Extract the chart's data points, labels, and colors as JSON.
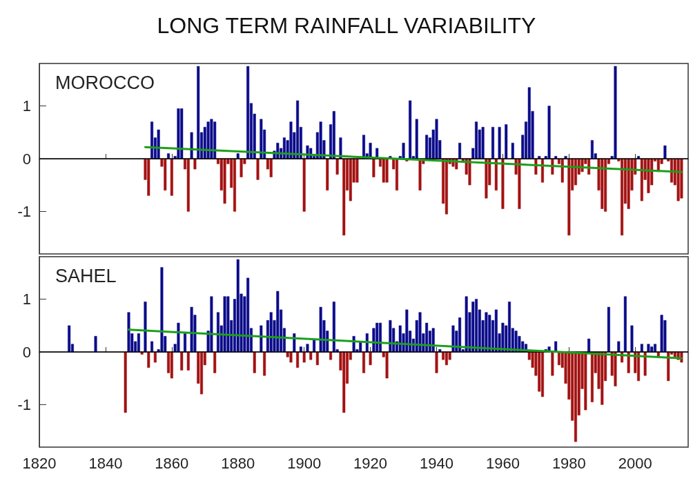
{
  "chart_data": [
    {
      "type": "bar",
      "title": "LONG TERM RAINFALL VARIABILITY",
      "annotations": [
        "MOROCCO"
      ],
      "tick_labels": "y",
      "xlim": [
        1820,
        2016
      ],
      "xticks": [
        1820,
        1840,
        1860,
        1880,
        1900,
        1920,
        1940,
        1960,
        1980,
        2000
      ],
      "ylim": [
        -1.8,
        1.8
      ],
      "yticks": [
        -1,
        0,
        1
      ],
      "ref_lines": [
        {
          "axis": "y",
          "value": 0,
          "color": "#000000"
        }
      ],
      "x": [
        1852,
        1853,
        1854,
        1855,
        1856,
        1857,
        1858,
        1859,
        1860,
        1861,
        1862,
        1863,
        1864,
        1865,
        1866,
        1867,
        1868,
        1869,
        1870,
        1871,
        1872,
        1873,
        1874,
        1875,
        1876,
        1877,
        1878,
        1879,
        1880,
        1881,
        1882,
        1883,
        1884,
        1885,
        1886,
        1887,
        1888,
        1889,
        1890,
        1891,
        1892,
        1893,
        1894,
        1895,
        1896,
        1897,
        1898,
        1899,
        1900,
        1901,
        1902,
        1903,
        1904,
        1905,
        1906,
        1907,
        1908,
        1909,
        1910,
        1911,
        1912,
        1913,
        1914,
        1915,
        1916,
        1917,
        1918,
        1919,
        1920,
        1921,
        1922,
        1923,
        1924,
        1925,
        1926,
        1927,
        1928,
        1929,
        1930,
        1931,
        1932,
        1933,
        1934,
        1935,
        1936,
        1937,
        1938,
        1939,
        1940,
        1941,
        1942,
        1943,
        1944,
        1945,
        1946,
        1947,
        1948,
        1949,
        1950,
        1951,
        1952,
        1953,
        1954,
        1955,
        1956,
        1957,
        1958,
        1959,
        1960,
        1961,
        1962,
        1963,
        1964,
        1965,
        1966,
        1967,
        1968,
        1969,
        1970,
        1971,
        1972,
        1973,
        1974,
        1975,
        1976,
        1977,
        1978,
        1979,
        1980,
        1981,
        1982,
        1983,
        1984,
        1985,
        1986,
        1987,
        1988,
        1989,
        1990,
        1991,
        1992,
        1993,
        1994,
        1995,
        1996,
        1997,
        1998,
        1999,
        2000,
        2001,
        2002,
        2003,
        2004,
        2005,
        2006,
        2007,
        2008,
        2009,
        2010,
        2011,
        2012,
        2013,
        2014
      ],
      "series": [
        {
          "color": "#0b0b8a",
          "values": [
            null,
            null,
            0.7,
            0.4,
            0.55,
            null,
            null,
            0.1,
            null,
            0.05,
            0.95,
            0.95,
            null,
            null,
            0.5,
            null,
            1.75,
            0.5,
            0.6,
            0.7,
            0.75,
            0.7,
            null,
            null,
            null,
            null,
            null,
            null,
            0.1,
            null,
            null,
            1.75,
            1.05,
            0.85,
            null,
            0.75,
            0.55,
            null,
            null,
            0.15,
            0.3,
            0.2,
            0.4,
            0.35,
            0.7,
            0.5,
            1.1,
            0.6,
            null,
            0.25,
            0.2,
            0.05,
            0.5,
            0.7,
            0.35,
            null,
            0.65,
            0.9,
            null,
            0.4,
            null,
            null,
            null,
            null,
            null,
            null,
            0.45,
            0.1,
            0.3,
            null,
            0.2,
            null,
            null,
            null,
            0.05,
            null,
            null,
            0.05,
            0.3,
            null,
            1.1,
            0.05,
            0.75,
            null,
            null,
            0.45,
            0.4,
            0.55,
            0.75,
            0.35,
            null,
            null,
            null,
            null,
            null,
            0.3,
            null,
            null,
            null,
            0.2,
            0.7,
            0.55,
            0.6,
            null,
            null,
            0.6,
            null,
            0.6,
            null,
            0.65,
            null,
            0.3,
            null,
            null,
            0.45,
            0.7,
            1.35,
            0.9,
            null,
            0.05,
            null,
            0.05,
            1.0,
            null,
            0.05,
            null,
            null,
            0.05,
            null,
            null,
            null,
            null,
            null,
            null,
            null,
            0.35,
            0.1,
            null,
            null,
            null,
            null,
            0.05,
            1.75,
            null,
            null,
            null,
            null,
            null,
            null,
            0.05,
            null,
            null,
            null,
            null,
            null,
            null,
            null,
            0.25,
            null,
            null,
            null,
            null,
            null
          ]
        },
        {
          "color": "#a31212",
          "values": [
            -0.4,
            -0.7,
            null,
            null,
            null,
            -0.15,
            -0.6,
            null,
            -0.7,
            null,
            null,
            null,
            -0.2,
            -1.0,
            null,
            -0.2,
            null,
            null,
            null,
            null,
            null,
            null,
            -0.1,
            -0.6,
            -0.85,
            -0.1,
            -0.55,
            -1.0,
            null,
            -0.35,
            -0.1,
            null,
            null,
            null,
            -0.4,
            null,
            null,
            -0.2,
            -0.35,
            null,
            null,
            null,
            null,
            null,
            null,
            null,
            null,
            null,
            -1.0,
            null,
            null,
            null,
            null,
            null,
            null,
            -0.6,
            null,
            null,
            -0.3,
            null,
            -1.45,
            -0.6,
            -0.8,
            -0.45,
            -0.45,
            null,
            null,
            null,
            null,
            -0.35,
            null,
            -0.15,
            -0.45,
            -0.45,
            null,
            -0.2,
            -0.6,
            null,
            null,
            -0.05,
            null,
            null,
            null,
            -0.6,
            -0.1,
            null,
            null,
            null,
            null,
            null,
            -0.85,
            -1.05,
            -0.1,
            -0.15,
            -0.2,
            null,
            -0.05,
            -0.3,
            -0.5,
            null,
            null,
            null,
            null,
            -0.75,
            -0.5,
            null,
            -0.6,
            null,
            -0.95,
            null,
            null,
            null,
            -0.3,
            -0.95,
            null,
            null,
            null,
            null,
            -0.3,
            null,
            -0.45,
            null,
            null,
            -0.3,
            null,
            -0.1,
            -0.45,
            null,
            -1.45,
            -0.6,
            -0.5,
            -0.3,
            -0.25,
            -0.1,
            -0.3,
            null,
            null,
            -0.6,
            -0.95,
            -1.0,
            -0.1,
            null,
            null,
            -0.05,
            -1.45,
            -0.85,
            -0.95,
            -0.6,
            -0.3,
            null,
            -0.8,
            -0.4,
            -0.65,
            -0.5,
            -0.05,
            -0.25,
            -0.1,
            null,
            -0.05,
            -0.45,
            -0.5,
            -0.8,
            -0.75
          ]
        },
        {
          "type": "line",
          "color": "#1aa01a",
          "x": [
            1852,
            2014
          ],
          "values": [
            0.22,
            -0.25
          ]
        }
      ]
    },
    {
      "type": "bar",
      "annotations": [
        "SAHEL"
      ],
      "xlim": [
        1820,
        2016
      ],
      "xticks": [
        1820,
        1840,
        1860,
        1880,
        1900,
        1920,
        1940,
        1960,
        1980,
        2000
      ],
      "ylim": [
        -1.8,
        1.8
      ],
      "yticks": [
        -1,
        0,
        1
      ],
      "ref_lines": [
        {
          "axis": "y",
          "value": 0,
          "color": "#000000"
        }
      ],
      "x": [
        1829,
        1830,
        1837,
        1846,
        1847,
        1848,
        1849,
        1850,
        1851,
        1852,
        1853,
        1854,
        1855,
        1856,
        1857,
        1858,
        1859,
        1860,
        1861,
        1862,
        1863,
        1864,
        1865,
        1866,
        1867,
        1868,
        1869,
        1870,
        1871,
        1872,
        1873,
        1874,
        1875,
        1876,
        1877,
        1878,
        1879,
        1880,
        1881,
        1882,
        1883,
        1884,
        1885,
        1886,
        1887,
        1888,
        1889,
        1890,
        1891,
        1892,
        1893,
        1894,
        1895,
        1896,
        1897,
        1898,
        1899,
        1900,
        1901,
        1902,
        1903,
        1904,
        1905,
        1906,
        1907,
        1908,
        1909,
        1910,
        1911,
        1912,
        1913,
        1914,
        1915,
        1916,
        1917,
        1918,
        1919,
        1920,
        1921,
        1922,
        1923,
        1924,
        1925,
        1926,
        1927,
        1928,
        1929,
        1930,
        1931,
        1932,
        1933,
        1934,
        1935,
        1936,
        1937,
        1938,
        1939,
        1940,
        1941,
        1942,
        1943,
        1944,
        1945,
        1946,
        1947,
        1948,
        1949,
        1950,
        1951,
        1952,
        1953,
        1954,
        1955,
        1956,
        1957,
        1958,
        1959,
        1960,
        1961,
        1962,
        1963,
        1964,
        1965,
        1966,
        1967,
        1968,
        1969,
        1970,
        1971,
        1972,
        1973,
        1974,
        1975,
        1976,
        1977,
        1978,
        1979,
        1980,
        1981,
        1982,
        1983,
        1984,
        1985,
        1986,
        1987,
        1988,
        1989,
        1990,
        1991,
        1992,
        1993,
        1994,
        1995,
        1996,
        1997,
        1998,
        1999,
        2000,
        2001,
        2002,
        2003,
        2004,
        2005,
        2006,
        2007,
        2008,
        2009,
        2010,
        2011,
        2012,
        2013,
        2014
      ],
      "series": [
        {
          "color": "#0b0b8a",
          "values": [
            0.5,
            0.15,
            0.3,
            null,
            0.75,
            0.35,
            0.2,
            0.35,
            null,
            0.95,
            null,
            0.2,
            null,
            0.05,
            1.6,
            0.3,
            null,
            null,
            0.15,
            0.55,
            null,
            0.35,
            null,
            0.85,
            0.7,
            null,
            null,
            null,
            0.4,
            1.05,
            null,
            0.75,
            0.5,
            1.05,
            1.05,
            0.6,
            1.0,
            1.75,
            1.1,
            1.05,
            1.4,
            0.45,
            null,
            null,
            0.5,
            null,
            0.6,
            0.75,
            0.6,
            1.15,
            0.8,
            0.45,
            null,
            null,
            0.35,
            null,
            0.1,
            null,
            0.15,
            null,
            0.25,
            null,
            0.85,
            0.6,
            0.4,
            null,
            0.95,
            0.05,
            null,
            null,
            null,
            null,
            0.3,
            0.05,
            0.2,
            null,
            0.35,
            null,
            0.45,
            0.55,
            0.55,
            null,
            null,
            0.6,
            0.45,
            0.2,
            0.5,
            0.35,
            0.8,
            0.4,
            0.25,
            0.6,
            0.75,
            0.35,
            0.55,
            0.4,
            0.45,
            null,
            0.05,
            null,
            null,
            null,
            0.5,
            0.4,
            0.65,
            0.05,
            1.05,
            0.75,
            0.95,
            1.0,
            0.8,
            0.6,
            0.75,
            0.7,
            0.6,
            0.8,
            0.35,
            0.55,
            0.5,
            0.95,
            0.45,
            0.4,
            0.3,
            0.2,
            0.15,
            null,
            null,
            null,
            null,
            null,
            0.05,
            0.1,
            null,
            0.2,
            null,
            null,
            null,
            null,
            null,
            null,
            null,
            null,
            null,
            0.25,
            null,
            null,
            null,
            null,
            null,
            0.85,
            null,
            null,
            0.2,
            null,
            1.05,
            null,
            0.5,
            null,
            null,
            0.15,
            null,
            0.15,
            0.1,
            0.15,
            null,
            0.7,
            0.6,
            null,
            null,
            null,
            null,
            null
          ]
        },
        {
          "color": "#a31212",
          "values": [
            null,
            null,
            null,
            -1.15,
            null,
            null,
            null,
            null,
            -0.05,
            null,
            -0.3,
            null,
            -0.2,
            null,
            null,
            null,
            -0.4,
            -0.5,
            null,
            null,
            -0.35,
            null,
            -0.35,
            null,
            null,
            -0.6,
            -0.8,
            -0.25,
            null,
            null,
            -0.4,
            null,
            null,
            null,
            null,
            null,
            null,
            null,
            null,
            null,
            null,
            null,
            -0.4,
            null,
            null,
            -0.45,
            null,
            null,
            null,
            null,
            null,
            null,
            -0.1,
            -0.2,
            null,
            -0.3,
            null,
            -0.2,
            null,
            -0.15,
            null,
            -0.25,
            null,
            null,
            null,
            -0.15,
            null,
            null,
            -0.35,
            -1.15,
            -0.6,
            -0.15,
            null,
            null,
            null,
            -0.4,
            null,
            -0.25,
            null,
            null,
            null,
            -0.1,
            -0.5,
            null,
            null,
            null,
            null,
            null,
            null,
            null,
            null,
            null,
            null,
            null,
            null,
            null,
            null,
            -0.4,
            null,
            -0.15,
            -0.25,
            -0.15,
            null,
            null,
            null,
            null,
            null,
            null,
            null,
            null,
            null,
            null,
            null,
            null,
            null,
            null,
            null,
            null,
            null,
            null,
            null,
            null,
            null,
            null,
            null,
            -0.15,
            -0.3,
            -0.45,
            -0.75,
            -0.85,
            null,
            null,
            -0.45,
            null,
            -0.25,
            -0.3,
            -0.6,
            -0.9,
            -1.3,
            -1.7,
            -1.2,
            -0.7,
            -1.1,
            null,
            -0.95,
            -0.4,
            -0.7,
            -1.0,
            -0.55,
            null,
            -0.45,
            -0.65,
            null,
            -0.2,
            null,
            -0.4,
            null,
            -0.4,
            -0.55,
            null,
            -0.45,
            null,
            null,
            null,
            -0.1,
            null,
            null,
            -0.55,
            -0.05,
            -0.1,
            -0.15,
            -0.2
          ]
        },
        {
          "type": "line",
          "color": "#1aa01a",
          "x": [
            1847,
            2014
          ],
          "values": [
            0.42,
            -0.12
          ]
        }
      ]
    }
  ]
}
